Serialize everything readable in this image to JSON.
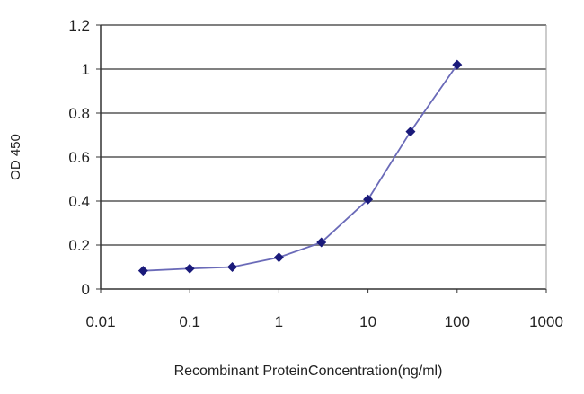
{
  "chart_data": {
    "type": "line",
    "title": "",
    "xlabel": "Recombinant ProteinConcentration(ng/ml)",
    "ylabel": "OD 450",
    "xscale": "log",
    "xlim": [
      0.01,
      1000
    ],
    "ylim": [
      0,
      1.2
    ],
    "xticks": [
      "0.01",
      "0.1",
      "1",
      "10",
      "100",
      "1000"
    ],
    "yticks": [
      "0",
      "0.2",
      "0.4",
      "0.6",
      "0.8",
      "1",
      "1.2"
    ],
    "grid": "horizontal",
    "legend": "none",
    "series": [
      {
        "x": [
          0.03,
          0.1,
          0.3,
          1,
          3,
          10,
          30,
          100
        ],
        "y": [
          0.083,
          0.093,
          0.1,
          0.144,
          0.212,
          0.407,
          0.716,
          1.02
        ],
        "color": "#1a1a7a",
        "line_color": "#6a6ab8",
        "marker": "diamond"
      }
    ]
  }
}
